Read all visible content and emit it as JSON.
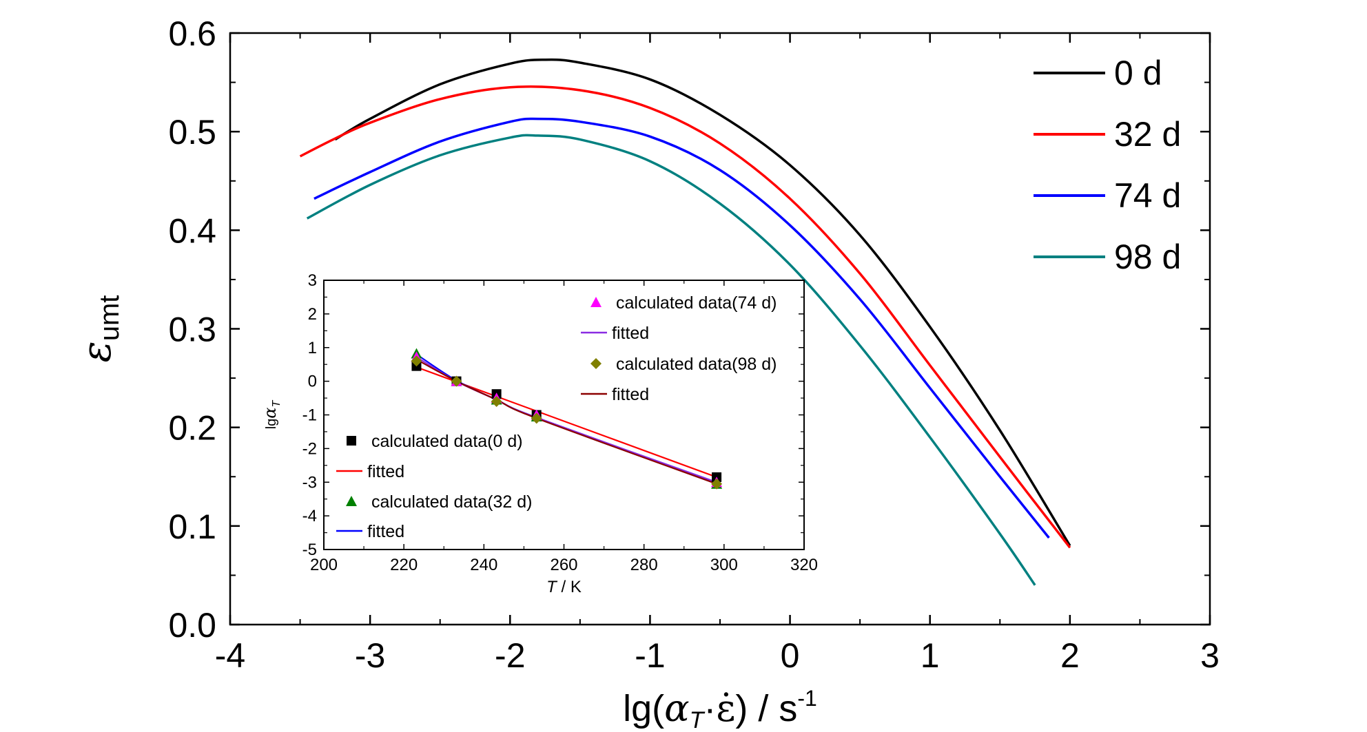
{
  "chart_data": [
    {
      "type": "line",
      "xlabel": "lg(αT·ε̇) / s-1",
      "ylabel": "εumt",
      "xlim": [
        -4,
        3
      ],
      "ylim": [
        0.0,
        0.6
      ],
      "xticks": [
        "-4",
        "-3",
        "-2",
        "-1",
        "0",
        "1",
        "2",
        "3"
      ],
      "yticks": [
        "0.0",
        "0.1",
        "0.2",
        "0.3",
        "0.4",
        "0.5",
        "0.6"
      ],
      "grid": false,
      "legend": "top-right",
      "series": [
        {
          "name": "0 d",
          "color": "#000000",
          "x": [
            -3.25,
            -3.0,
            -2.5,
            -2.0,
            -1.75,
            -1.5,
            -1.0,
            -0.5,
            0.0,
            0.5,
            1.0,
            1.5,
            2.0
          ],
          "y": [
            0.492,
            0.513,
            0.548,
            0.569,
            0.573,
            0.57,
            0.553,
            0.517,
            0.466,
            0.395,
            0.302,
            0.197,
            0.08
          ]
        },
        {
          "name": "32 d",
          "color": "#ff0000",
          "x": [
            -3.5,
            -3.25,
            -3.0,
            -2.5,
            -2.0,
            -1.5,
            -1.0,
            -0.5,
            0.0,
            0.5,
            1.0,
            1.5,
            2.0
          ],
          "y": [
            0.475,
            0.493,
            0.509,
            0.533,
            0.545,
            0.542,
            0.524,
            0.488,
            0.432,
            0.356,
            0.263,
            0.17,
            0.078
          ]
        },
        {
          "name": "74 d",
          "color": "#0000ff",
          "x": [
            -3.4,
            -3.0,
            -2.5,
            -2.0,
            -1.8,
            -1.5,
            -1.0,
            -0.5,
            0.0,
            0.5,
            1.0,
            1.5,
            1.85
          ],
          "y": [
            0.432,
            0.459,
            0.49,
            0.51,
            0.513,
            0.51,
            0.495,
            0.461,
            0.405,
            0.33,
            0.24,
            0.15,
            0.088
          ]
        },
        {
          "name": "98 d",
          "color": "#008080",
          "x": [
            -3.45,
            -3.0,
            -2.5,
            -2.0,
            -1.8,
            -1.5,
            -1.0,
            -0.5,
            0.0,
            0.5,
            1.0,
            1.5,
            1.75
          ],
          "y": [
            0.412,
            0.446,
            0.476,
            0.494,
            0.496,
            0.492,
            0.47,
            0.427,
            0.365,
            0.283,
            0.19,
            0.092,
            0.04
          ]
        }
      ]
    },
    {
      "type": "scatter",
      "xlabel": "T / K",
      "ylabel": "lgαT",
      "xlim": [
        200,
        320
      ],
      "ylim": [
        -5,
        3
      ],
      "xticks": [
        "200",
        "220",
        "240",
        "260",
        "280",
        "300",
        "320"
      ],
      "yticks": [
        "-5",
        "-4",
        "-3",
        "-2",
        "-1",
        "0",
        "1",
        "2",
        "3"
      ],
      "grid": false,
      "series": [
        {
          "name": "calculated data(0 d)",
          "marker": "square",
          "color": "#000000",
          "x": [
            223.15,
            233.15,
            243.15,
            253.15,
            298.15
          ],
          "y": [
            0.45,
            0.0,
            -0.38,
            -1.0,
            -2.85
          ]
        },
        {
          "name": "fitted",
          "color": "#ff0000",
          "line": true,
          "x": [
            223.15,
            298.15
          ],
          "y": [
            0.42,
            -2.85
          ]
        },
        {
          "name": "calculated data(32 d)",
          "marker": "triangle",
          "color": "#008000",
          "x": [
            223.15,
            233.15,
            243.15,
            253.15,
            298.15
          ],
          "y": [
            0.82,
            0.0,
            -0.55,
            -1.05,
            -3.05
          ]
        },
        {
          "name": "fitted",
          "color": "#0000ff",
          "line": true,
          "x": [
            223.15,
            233.15,
            243.15,
            253.15,
            298.15
          ],
          "y": [
            0.8,
            0.02,
            -0.55,
            -1.08,
            -3.02
          ]
        },
        {
          "name": "calculated data(74 d)",
          "marker": "triangle",
          "color": "#ff00ff",
          "x": [
            223.15,
            233.15,
            243.15,
            253.15,
            298.15
          ],
          "y": [
            0.72,
            0.0,
            -0.5,
            -1.0,
            -3.0
          ]
        },
        {
          "name": "fitted",
          "color": "#8a2be2",
          "line": true,
          "x": [
            223.15,
            233.15,
            243.15,
            253.15,
            298.15
          ],
          "y": [
            0.72,
            0.0,
            -0.55,
            -1.08,
            -3.0
          ]
        },
        {
          "name": "calculated data(98 d)",
          "marker": "diamond",
          "color": "#808000",
          "x": [
            223.15,
            233.15,
            243.15,
            253.15,
            298.15
          ],
          "y": [
            0.6,
            0.0,
            -0.6,
            -1.1,
            -3.05
          ]
        },
        {
          "name": "fitted",
          "color": "#8b0000",
          "line": true,
          "x": [
            223.15,
            233.15,
            243.15,
            253.15,
            298.15
          ],
          "y": [
            0.65,
            0.0,
            -0.55,
            -1.1,
            -3.05
          ]
        }
      ]
    }
  ]
}
